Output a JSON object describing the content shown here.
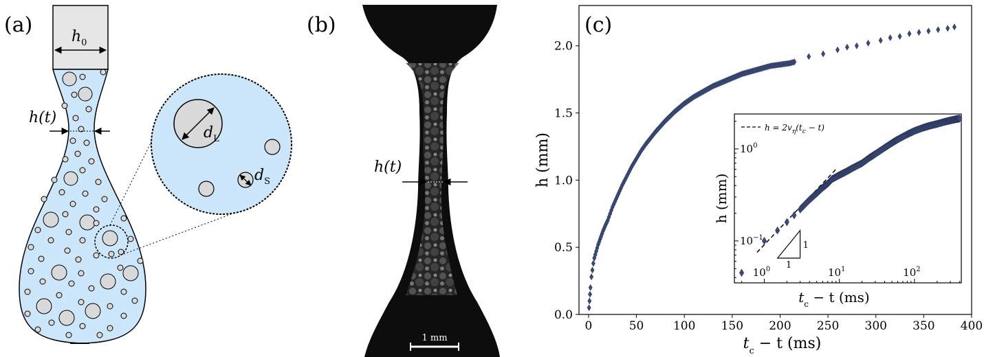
{
  "panels": {
    "a": {
      "letter": "(a)",
      "h0_main": "h",
      "h0_sub": "0",
      "ht_label": "h(t)",
      "dL_main": "d",
      "dL_sub": "L",
      "dS_main": "d",
      "dS_sub": "S"
    },
    "b": {
      "letter": "(b)",
      "ht_label": "h(t)",
      "scale_label": "1 mm"
    },
    "c": {
      "letter": "(c)"
    }
  },
  "colors": {
    "fluid": "#cce6fb",
    "bubble": "#d9d9d9",
    "nozzle": "#e6e6e6",
    "marker": "#3a4a78"
  },
  "chart_data": [
    {
      "type": "scatter",
      "marker": "diamond",
      "xlabel_main": "t",
      "xlabel_sub": "c",
      "xlabel_rest": " − t (ms)",
      "ylabel": "h (mm)",
      "xlim": [
        -10,
        400
      ],
      "ylim": [
        0,
        2.3
      ],
      "xticks": [
        "0",
        "50",
        "100",
        "150",
        "200",
        "250",
        "300",
        "350",
        "400"
      ],
      "xtick_values": [
        0,
        50,
        100,
        150,
        200,
        250,
        300,
        350,
        400
      ],
      "yticks": [
        "0.0",
        "0.5",
        "1.0",
        "1.5",
        "2.0"
      ],
      "ytick_values": [
        0,
        0.5,
        1.0,
        1.5,
        2.0
      ],
      "series": [
        {
          "x": [
            0.5,
            1,
            1.5,
            2,
            3,
            4,
            5,
            6,
            8,
            10,
            12,
            15,
            18,
            20,
            25,
            30,
            35,
            40,
            45,
            50,
            55,
            60,
            70,
            80,
            90,
            100,
            110,
            120,
            130,
            140,
            150,
            160,
            170,
            180,
            190,
            200,
            210,
            215,
            230,
            245,
            260,
            270,
            280,
            292,
            305,
            315,
            325,
            335,
            345,
            355,
            365,
            375,
            382
          ],
          "y": [
            0.05,
            0.1,
            0.15,
            0.2,
            0.28,
            0.33,
            0.38,
            0.42,
            0.47,
            0.52,
            0.56,
            0.62,
            0.67,
            0.7,
            0.8,
            0.88,
            0.96,
            1.03,
            1.1,
            1.16,
            1.22,
            1.27,
            1.36,
            1.44,
            1.51,
            1.57,
            1.62,
            1.66,
            1.7,
            1.73,
            1.76,
            1.79,
            1.81,
            1.83,
            1.85,
            1.86,
            1.87,
            1.88,
            1.92,
            1.94,
            1.97,
            1.99,
            2.0,
            2.02,
            2.04,
            2.06,
            2.07,
            2.09,
            2.1,
            2.11,
            2.12,
            2.13,
            2.14
          ]
        }
      ]
    },
    {
      "type": "scatter",
      "marker": "diamond",
      "scale": "log-log",
      "xlabel_main": "t",
      "xlabel_sub": "c",
      "xlabel_rest": " − t (ms)",
      "ylabel": "h (mm)",
      "xlim": [
        0.4,
        420
      ],
      "ylim": [
        0.035,
        2.4
      ],
      "xticks": [
        "10",
        "10",
        "10"
      ],
      "xtick_exp": [
        "0",
        "1",
        "2"
      ],
      "yticks": [
        "10",
        "10"
      ],
      "ytick_exp": [
        "−1",
        "0"
      ],
      "legend": "h =  2v",
      "legend_sub": "η",
      "legend_rest": "(t",
      "legend_sub2": "c",
      "legend_rest2": " − t)",
      "legend_position": "top-left",
      "slope_label_vertical": "1",
      "slope_label_horizontal": "1",
      "series": [
        {
          "x": [
            0.5,
            1,
            1.5,
            2,
            2.5,
            3,
            4,
            5,
            6,
            7,
            8,
            10,
            12,
            15,
            20,
            25,
            30,
            40,
            50,
            60,
            80,
            100,
            130,
            160,
            200,
            250,
            300,
            350,
            400
          ],
          "y": [
            0.045,
            0.1,
            0.13,
            0.16,
            0.19,
            0.22,
            0.28,
            0.33,
            0.38,
            0.42,
            0.47,
            0.52,
            0.56,
            0.62,
            0.7,
            0.8,
            0.88,
            1.03,
            1.16,
            1.27,
            1.44,
            1.57,
            1.7,
            1.79,
            1.87,
            1.97,
            2.04,
            2.1,
            2.14
          ]
        }
      ],
      "fit_line": {
        "x": [
          0.8,
          9
        ],
        "y": [
          0.075,
          0.6
        ]
      }
    }
  ]
}
